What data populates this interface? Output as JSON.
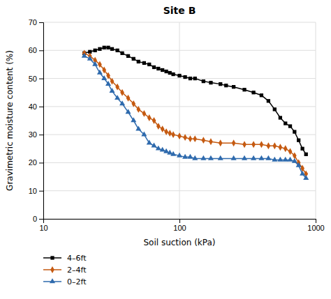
{
  "chart_data": {
    "type": "line",
    "title": "Site B",
    "xlabel": "Soil suction (kPa)",
    "ylabel": "Gravimetric moisture content (%)",
    "log": "x",
    "grid": true,
    "legend": "bottom",
    "xlim": [
      10,
      1000
    ],
    "xticks": [
      10,
      100,
      1000
    ],
    "ylim": [
      0,
      70
    ],
    "yticks": [
      0,
      10,
      20,
      30,
      40,
      50,
      60,
      70
    ],
    "series": [
      {
        "name": "4–6ft",
        "color": "#000000",
        "marker": "square",
        "x": [
          20,
          22,
          24,
          26,
          28,
          30,
          32,
          35,
          38,
          42,
          46,
          50,
          55,
          60,
          65,
          70,
          75,
          80,
          85,
          90,
          100,
          110,
          120,
          130,
          150,
          170,
          200,
          220,
          250,
          300,
          350,
          400,
          450,
          500,
          550,
          600,
          650,
          700,
          750,
          800,
          850
        ],
        "values": [
          59,
          59.5,
          60,
          60.5,
          61,
          61,
          60.5,
          60,
          59,
          58,
          57,
          56,
          55.5,
          55,
          54,
          53.5,
          53,
          52.5,
          52,
          51.5,
          51,
          50.5,
          50,
          50,
          49,
          48.5,
          48,
          47.5,
          47,
          46,
          45,
          44,
          42,
          39,
          36,
          34,
          33,
          31,
          28,
          25,
          23
        ]
      },
      {
        "name": "2–4ft",
        "color": "#c55a11",
        "marker": "diamond",
        "x": [
          20,
          22,
          24,
          26,
          28,
          30,
          32,
          35,
          38,
          42,
          46,
          50,
          55,
          60,
          65,
          70,
          75,
          80,
          85,
          90,
          100,
          110,
          120,
          130,
          150,
          170,
          200,
          250,
          300,
          350,
          400,
          450,
          500,
          550,
          600,
          650,
          700,
          750,
          800,
          850
        ],
        "values": [
          59,
          58,
          56.5,
          55,
          53,
          51,
          49,
          47,
          45,
          43,
          41,
          39,
          37.5,
          36,
          35,
          33,
          32,
          31,
          30.5,
          30,
          29.5,
          29,
          28.5,
          28.5,
          28,
          27.5,
          27,
          27,
          26.5,
          26.5,
          26.5,
          26,
          26,
          25.5,
          25,
          24,
          22.5,
          20,
          18,
          16
        ]
      },
      {
        "name": "0–2ft",
        "color": "#2e6aad",
        "marker": "triangle",
        "x": [
          20,
          22,
          24,
          26,
          28,
          30,
          32,
          35,
          38,
          42,
          46,
          50,
          55,
          60,
          65,
          70,
          75,
          80,
          85,
          90,
          100,
          110,
          120,
          130,
          150,
          170,
          200,
          250,
          300,
          350,
          400,
          450,
          500,
          550,
          600,
          650,
          700,
          750,
          800,
          850
        ],
        "values": [
          58,
          57,
          55,
          52,
          50,
          48,
          45.5,
          43,
          41,
          38,
          35,
          32,
          30,
          27,
          26,
          25,
          24.5,
          24,
          23.5,
          23,
          22.5,
          22,
          22,
          21.5,
          21.5,
          21.5,
          21.5,
          21.5,
          21.5,
          21.5,
          21.5,
          21.5,
          21,
          21,
          21,
          21,
          20.5,
          19,
          16,
          14.5
        ]
      }
    ]
  }
}
